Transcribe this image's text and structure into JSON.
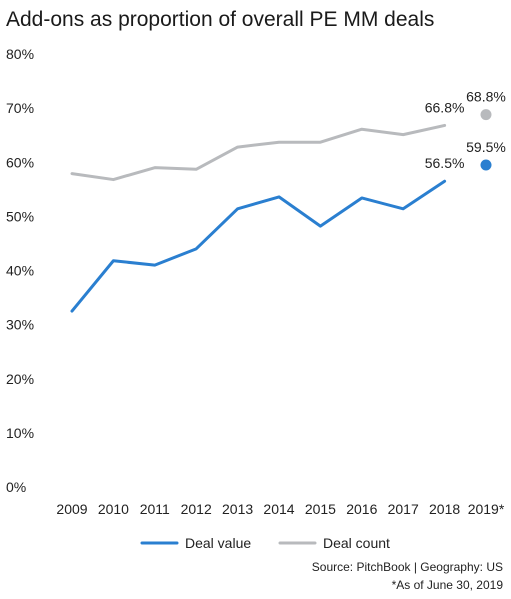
{
  "chart_data": {
    "type": "line",
    "title": "Add-ons as proportion of overall PE MM deals",
    "categories": [
      "2009",
      "2010",
      "2011",
      "2012",
      "2013",
      "2014",
      "2015",
      "2016",
      "2017",
      "2018",
      "2019*"
    ],
    "ylim": [
      0,
      80
    ],
    "yticks": [
      "0%",
      "10%",
      "20%",
      "30%",
      "40%",
      "50%",
      "60%",
      "70%",
      "80%"
    ],
    "grid": false,
    "series": [
      {
        "name": "Deal value",
        "color": "#2a7fd0",
        "values": [
          32.5,
          41.8,
          41.0,
          44.0,
          51.4,
          53.6,
          48.2,
          53.4,
          51.4,
          56.5,
          59.5
        ],
        "labels": [
          {
            "index": 9,
            "text": "56.5%"
          },
          {
            "index": 10,
            "text": "59.5%"
          }
        ]
      },
      {
        "name": "Deal count",
        "color": "#b8babd",
        "values": [
          57.9,
          56.8,
          59.0,
          58.7,
          62.8,
          63.7,
          63.7,
          66.1,
          65.1,
          66.8,
          68.8
        ],
        "labels": [
          {
            "index": 9,
            "text": "66.8%"
          },
          {
            "index": 10,
            "text": "68.8%"
          }
        ]
      }
    ],
    "legend": "bottom",
    "source": "Source: PitchBook | Geography: US",
    "note": "*As of June 30, 2019"
  }
}
